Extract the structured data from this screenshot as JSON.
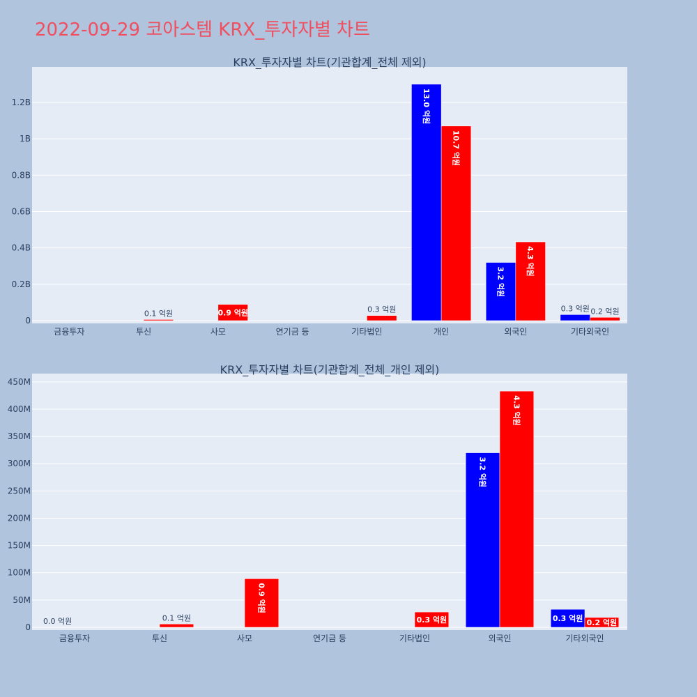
{
  "page": {
    "title": "2022-09-29 코아스템 KRX_투자자별 차트"
  },
  "colors": {
    "buy": "#0000ff",
    "sell": "#ff0000",
    "plot_bg": "#e5ecf6",
    "page_bg": "#b0c4de",
    "title": "#ef4f5f"
  },
  "chart_data": [
    {
      "type": "bar",
      "title": "KRX_투자자별 차트(기관합계_전체 제외)",
      "categories": [
        "금융투자",
        "투신",
        "사모",
        "연기금 등",
        "기타법인",
        "개인",
        "외국인",
        "기타외국인"
      ],
      "series": [
        {
          "values": [
            0,
            0,
            0,
            0,
            0,
            1300000000,
            320000000,
            33000000
          ]
        },
        {
          "values": [
            0,
            6000000,
            89000000,
            0,
            28000000,
            1070000000,
            433000000,
            18000000
          ]
        }
      ],
      "data_labels": [
        [
          "",
          "",
          "",
          "",
          "",
          "13.0 억원",
          "3.2 억원",
          "0.3 억원"
        ],
        [
          "",
          "0.1 억원",
          "0.9 억원",
          "",
          "0.3 억원",
          "10.7 억원",
          "4.3 억원",
          "0.2 억원"
        ]
      ],
      "ylim": [
        0,
        1380000000
      ],
      "yticks": [
        0,
        200000000,
        400000000,
        600000000,
        800000000,
        1000000000,
        1200000000
      ],
      "ytick_labels": [
        "0",
        "0.2B",
        "0.4B",
        "0.6B",
        "0.8B",
        "1B",
        "1.2B"
      ],
      "grid": true
    },
    {
      "type": "bar",
      "title": "KRX_투자자별 차트(기관합계_전체_개인 제외)",
      "categories": [
        "금융투자",
        "투신",
        "사모",
        "연기금 등",
        "기타법인",
        "외국인",
        "기타외국인"
      ],
      "series": [
        {
          "values": [
            0,
            0,
            0,
            0,
            0,
            320000000,
            33000000
          ]
        },
        {
          "values": [
            0,
            6000000,
            89000000,
            0,
            28000000,
            433000000,
            18000000
          ]
        }
      ],
      "data_labels": [
        [
          "0.0 억원",
          "",
          "",
          "",
          "",
          "3.2 억원",
          "0.3 억원"
        ],
        [
          "",
          "0.1 억원",
          "0.9 억원",
          "",
          "0.3 억원",
          "4.3 억원",
          "0.2 억원"
        ]
      ],
      "ylim": [
        0,
        460000000
      ],
      "yticks": [
        0,
        50000000,
        100000000,
        150000000,
        200000000,
        250000000,
        300000000,
        350000000,
        400000000,
        450000000
      ],
      "ytick_labels": [
        "0",
        "50M",
        "100M",
        "150M",
        "200M",
        "250M",
        "300M",
        "350M",
        "400M",
        "450M"
      ],
      "grid": true
    }
  ]
}
